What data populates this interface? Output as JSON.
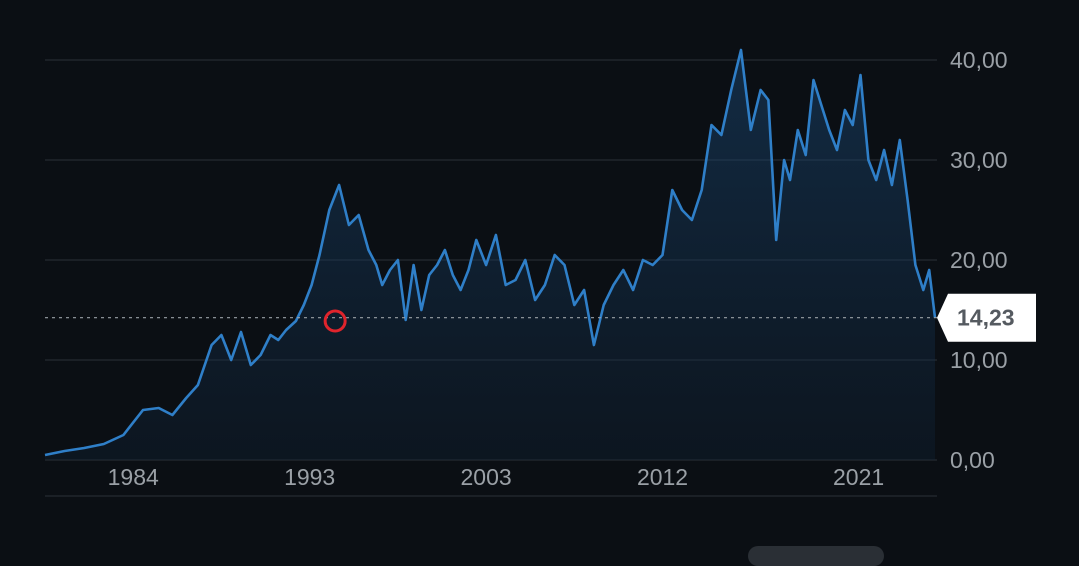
{
  "chart_data": {
    "type": "area",
    "title": "",
    "xlabel": "",
    "ylabel": "",
    "xlim": [
      1980,
      2025.5
    ],
    "ylim": [
      0,
      40
    ],
    "x_ticks": [
      {
        "value": 1984.5,
        "label": "1984"
      },
      {
        "value": 1993.5,
        "label": "1993"
      },
      {
        "value": 2002.5,
        "label": "2003"
      },
      {
        "value": 2011.5,
        "label": "2012"
      },
      {
        "value": 2021.5,
        "label": "2021"
      }
    ],
    "y_ticks": [
      {
        "value": 0,
        "label": "0,00"
      },
      {
        "value": 10,
        "label": "10,00"
      },
      {
        "value": 20,
        "label": "20,00"
      },
      {
        "value": 30,
        "label": "30,00"
      },
      {
        "value": 40,
        "label": "40,00"
      }
    ],
    "current_price": {
      "value": 14.23,
      "label": "14,23"
    },
    "highlight_point": {
      "x": 1994.8,
      "y": 13.9
    },
    "grid": true,
    "colors": {
      "line": "#2f7fc8",
      "marker": "#e0242c",
      "background": "#0b0f14"
    },
    "series": [
      {
        "x": [
          1980.0,
          1981.0,
          1982.0,
          1983.0,
          1984.0,
          1985.0,
          1985.8,
          1986.5,
          1987.2,
          1987.8,
          1988.5,
          1989.0,
          1989.5,
          1990.0,
          1990.5,
          1991.0,
          1991.5,
          1991.9,
          1992.3,
          1992.8,
          1993.2,
          1993.6,
          1994.0,
          1994.5,
          1995.0,
          1995.5,
          1996.0,
          1996.5,
          1996.9,
          1997.2,
          1997.6,
          1998.0,
          1998.4,
          1998.8,
          1999.2,
          1999.6,
          2000.0,
          2000.4,
          2000.8,
          2001.2,
          2001.6,
          2002.0,
          2002.5,
          2003.0,
          2003.5,
          2004.0,
          2004.5,
          2005.0,
          2005.5,
          2006.0,
          2006.5,
          2007.0,
          2007.5,
          2008.0,
          2008.5,
          2009.0,
          2009.5,
          2010.0,
          2010.5,
          2011.0,
          2011.5,
          2012.0,
          2012.5,
          2013.0,
          2013.5,
          2014.0,
          2014.5,
          2015.0,
          2015.5,
          2016.0,
          2016.5,
          2016.9,
          2017.3,
          2017.7,
          2018.0,
          2018.4,
          2018.8,
          2019.2,
          2019.6,
          2020.0,
          2020.4,
          2020.8,
          2021.2,
          2021.6,
          2022.0,
          2022.4,
          2022.8,
          2023.2,
          2023.6,
          2024.0,
          2024.4,
          2024.8,
          2025.1,
          2025.4
        ],
        "values": [
          0.5,
          0.9,
          1.2,
          1.6,
          2.5,
          5.0,
          5.2,
          4.5,
          6.2,
          7.5,
          11.5,
          12.5,
          10.0,
          12.8,
          9.5,
          10.5,
          12.5,
          12.0,
          13.0,
          13.9,
          15.5,
          17.5,
          20.5,
          25.0,
          27.5,
          23.5,
          24.5,
          21.0,
          19.5,
          17.5,
          19.0,
          20.0,
          14.0,
          19.5,
          15.0,
          18.5,
          19.5,
          21.0,
          18.5,
          17.0,
          19.0,
          22.0,
          19.5,
          22.5,
          17.5,
          18.0,
          20.0,
          16.0,
          17.5,
          20.5,
          19.5,
          15.5,
          17.0,
          11.5,
          15.5,
          17.5,
          19.0,
          17.0,
          20.0,
          19.5,
          20.5,
          27.0,
          25.0,
          24.0,
          27.0,
          33.5,
          32.5,
          37.0,
          41.0,
          33.0,
          37.0,
          36.0,
          22.0,
          30.0,
          28.0,
          33.0,
          30.5,
          38.0,
          35.5,
          33.0,
          31.0,
          35.0,
          33.5,
          38.5,
          30.0,
          28.0,
          31.0,
          27.5,
          32.0,
          26.0,
          19.5,
          17.0,
          19.0,
          14.23
        ]
      }
    ]
  }
}
